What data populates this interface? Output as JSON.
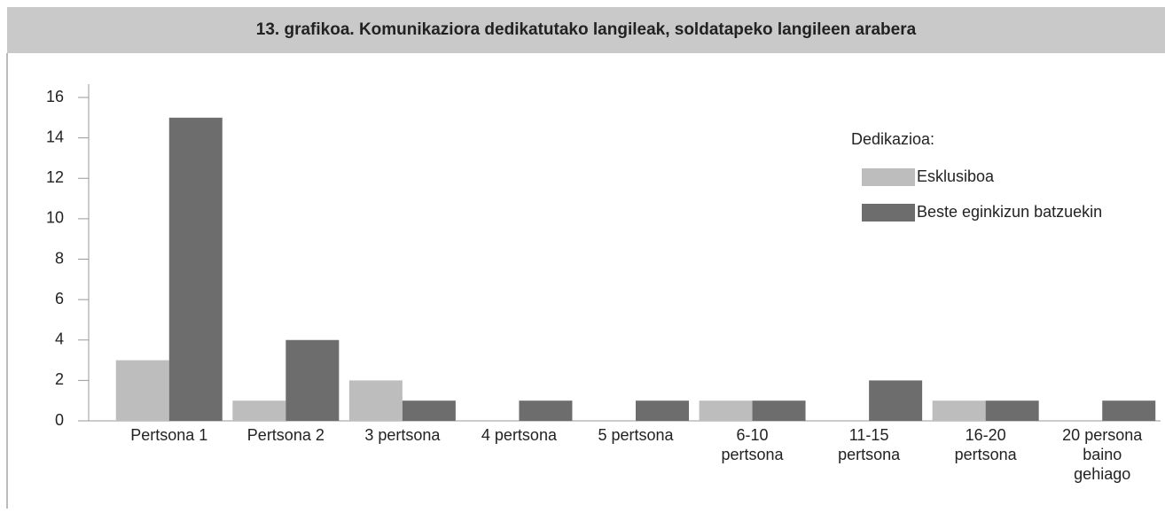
{
  "chart_data": {
    "type": "bar",
    "title": "13. grafikoa. Komunikaziora dedikatutako langileak, soldatapeko langileen arabera",
    "categories": [
      "Pertsona 1",
      "Pertsona 2",
      "3 pertsona",
      "4 pertsona",
      "5 pertsona",
      "6-10\npertsona",
      "11-15\npertsona",
      "16-20\npertsona",
      "20 persona\nbaino\ngehiago"
    ],
    "legend_title": "Dedikazioa:",
    "series": [
      {
        "name": "Esklusiboa",
        "color": "#bdbdbd",
        "values": [
          3,
          1,
          2,
          0,
          0,
          1,
          0,
          1,
          0
        ]
      },
      {
        "name": "Beste eginkizun batzuekin",
        "color": "#6d6d6d",
        "values": [
          15,
          4,
          1,
          1,
          1,
          1,
          2,
          1,
          1
        ]
      }
    ],
    "ylim": [
      0,
      16
    ],
    "yticks": [
      0,
      2,
      4,
      6,
      8,
      10,
      12,
      14,
      16
    ],
    "grid": false,
    "legend": "upper right"
  }
}
